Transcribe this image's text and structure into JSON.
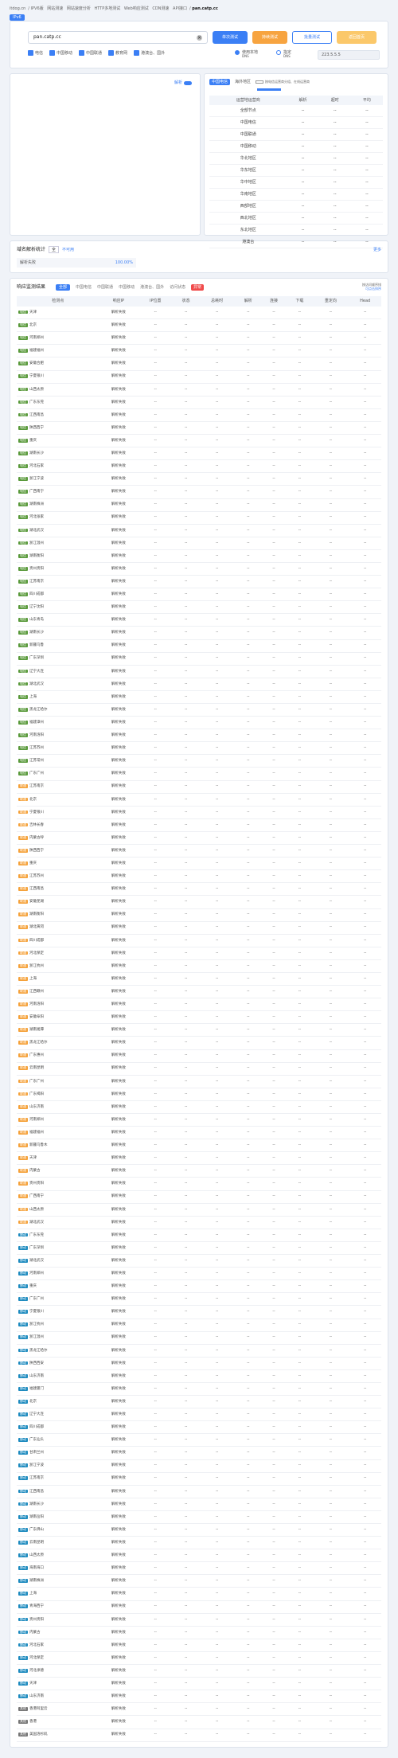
{
  "breadcrumb": [
    "itdog.cn",
    "IPV6版",
    "网站测速",
    "网站速度分析",
    "HTTP多地测试",
    "Web响应测试",
    "CDN测速",
    "API接口",
    "pan.catp.cc"
  ],
  "tag_label": "IPv6",
  "search": {
    "url_value": "pan.catp.cc",
    "btn_single": "单次测试",
    "btn_continuous": "持续测试",
    "btn_batch": "批量测试",
    "btn_ipv6": "返回首页"
  },
  "options": [
    "电信",
    "中国移动",
    "中国联通",
    "教育网",
    "港澳台、国外"
  ],
  "dns": {
    "opt1": "使用本地",
    "opt1_sub": "DNS",
    "opt2": "指定",
    "opt2_sub": "DNS",
    "value": "223.5.5.5"
  },
  "map_toggle": "解析",
  "isp": {
    "tabs": [
      "中国电信",
      "海外地区"
    ],
    "note": "按电信运营商分组、在线运营商",
    "headers": [
      "运营地运营商",
      "解析",
      "超时",
      "平均"
    ],
    "rows": [
      [
        "全部节点",
        "--",
        "--",
        "--"
      ],
      [
        "中国电信",
        "--",
        "--",
        "--"
      ],
      [
        "中国联通",
        "--",
        "--",
        "--"
      ],
      [
        "中国移动",
        "--",
        "--",
        "--"
      ],
      [
        "华北地区",
        "--",
        "--",
        "--"
      ],
      [
        "华东地区",
        "--",
        "--",
        "--"
      ],
      [
        "华中地区",
        "--",
        "--",
        "--"
      ],
      [
        "华南地区",
        "--",
        "--",
        "--"
      ],
      [
        "西部地区",
        "--",
        "--",
        "--"
      ],
      [
        "西北地区",
        "--",
        "--",
        "--"
      ],
      [
        "东北地区",
        "--",
        "--",
        "--"
      ],
      [
        "港澳台",
        "--",
        "--",
        "--"
      ]
    ]
  },
  "stat": {
    "title": "域名解析统计",
    "select": "全",
    "tag": "不可用",
    "more": "更多",
    "label": "解析失败",
    "value": "100.00%"
  },
  "result": {
    "title": "响应监测结果",
    "tabs": [
      "全部",
      "中国电信",
      "中国联通",
      "中国移动",
      "港澳台、国外",
      "访问状态",
      "异常"
    ],
    "tip1": "按访问顺序排",
    "tip2": "可点击排序",
    "headers": [
      "检测点",
      "响应IP",
      "IP位置",
      "状态",
      "总耗时",
      "解析",
      "连接",
      "下载",
      "重定向",
      "Head"
    ]
  },
  "rows": [
    [
      "电信",
      "天津"
    ],
    [
      "电信",
      "北京"
    ],
    [
      "电信",
      "河南郑州"
    ],
    [
      "电信",
      "福建福州"
    ],
    [
      "电信",
      "安徽合肥"
    ],
    [
      "电信",
      "宁夏银川"
    ],
    [
      "电信",
      "山西太原"
    ],
    [
      "电信",
      "广东东莞"
    ],
    [
      "电信",
      "江西南昌"
    ],
    [
      "电信",
      "陕西西宁"
    ],
    [
      "电信",
      "重庆"
    ],
    [
      "电信",
      "湖南长沙"
    ],
    [
      "电信",
      "河北石家"
    ],
    [
      "电信",
      "浙江宁波"
    ],
    [
      "电信",
      "广西南宁"
    ],
    [
      "电信",
      "湖南株洲"
    ],
    [
      "电信",
      "河北张家"
    ],
    [
      "电信",
      "湖北武汉"
    ],
    [
      "电信",
      "浙江温州"
    ],
    [
      "电信",
      "湖南衡阳"
    ],
    [
      "电信",
      "贵州贵阳"
    ],
    [
      "电信",
      "江苏南京"
    ],
    [
      "电信",
      "四川成都"
    ],
    [
      "电信",
      "辽宁沈阳"
    ],
    [
      "电信",
      "山东青岛"
    ],
    [
      "电信",
      "湖南长沙"
    ],
    [
      "电信",
      "新疆乌鲁"
    ],
    [
      "电信",
      "广东深圳"
    ],
    [
      "电信",
      "辽宁大连"
    ],
    [
      "电信",
      "湖北武汉"
    ],
    [
      "电信",
      "上海"
    ],
    [
      "电信",
      "黑龙江哈尔"
    ],
    [
      "电信",
      "福建漳州"
    ],
    [
      "电信",
      "河南洛阳"
    ],
    [
      "电信",
      "江苏苏州"
    ],
    [
      "电信",
      "江苏常州"
    ],
    [
      "电信",
      "广东广州"
    ],
    [
      "联通",
      "江苏南京"
    ],
    [
      "联通",
      "北京"
    ],
    [
      "联通",
      "宁夏银川"
    ],
    [
      "联通",
      "吉林长春"
    ],
    [
      "联通",
      "内蒙古呼"
    ],
    [
      "联通",
      "陕西西宁"
    ],
    [
      "联通",
      "重庆"
    ],
    [
      "联通",
      "江苏苏州"
    ],
    [
      "联通",
      "江西南昌"
    ],
    [
      "联通",
      "安徽芜湖"
    ],
    [
      "联通",
      "湖南衡阳"
    ],
    [
      "联通",
      "湖北黄冈"
    ],
    [
      "联通",
      "四川成都"
    ],
    [
      "联通",
      "河北保定"
    ],
    [
      "联通",
      "浙江杭州"
    ],
    [
      "联通",
      "上海"
    ],
    [
      "联通",
      "江西赣州"
    ],
    [
      "联通",
      "河南洛阳"
    ],
    [
      "联通",
      "安徽阜阳"
    ],
    [
      "联通",
      "湖南湘潭"
    ],
    [
      "联通",
      "黑龙江哈尔"
    ],
    [
      "联通",
      "广东惠州"
    ],
    [
      "联通",
      "云南昆明"
    ],
    [
      "联通",
      "广东广州"
    ],
    [
      "联通",
      "广东揭阳"
    ],
    [
      "联通",
      "山东济南"
    ],
    [
      "联通",
      "河南郑州"
    ],
    [
      "联通",
      "福建福州"
    ],
    [
      "联通",
      "新疆乌鲁木"
    ],
    [
      "联通",
      "天津"
    ],
    [
      "联通",
      "内蒙古"
    ],
    [
      "联通",
      "贵州贵阳"
    ],
    [
      "联通",
      "广西南宁"
    ],
    [
      "联通",
      "山西太原"
    ],
    [
      "联通",
      "湖北武汉"
    ],
    [
      "移动",
      "广东东莞"
    ],
    [
      "移动",
      "广东深圳"
    ],
    [
      "移动",
      "湖北武汉"
    ],
    [
      "移动",
      "河南郑州"
    ],
    [
      "移动",
      "重庆"
    ],
    [
      "移动",
      "广东广州"
    ],
    [
      "移动",
      "宁夏银川"
    ],
    [
      "移动",
      "浙江杭州"
    ],
    [
      "移动",
      "浙江温州"
    ],
    [
      "移动",
      "黑龙江哈尔"
    ],
    [
      "移动",
      "陕西西安"
    ],
    [
      "移动",
      "山东济南"
    ],
    [
      "移动",
      "福建厦门"
    ],
    [
      "移动",
      "北京"
    ],
    [
      "移动",
      "辽宁大连"
    ],
    [
      "移动",
      "四川成都"
    ],
    [
      "移动",
      "广东汕头"
    ],
    [
      "移动",
      "甘肃兰州"
    ],
    [
      "移动",
      "浙江宁波"
    ],
    [
      "移动",
      "江苏南京"
    ],
    [
      "移动",
      "江西南昌"
    ],
    [
      "移动",
      "湖南长沙"
    ],
    [
      "移动",
      "湖南岳阳"
    ],
    [
      "移动",
      "广东佛山"
    ],
    [
      "移动",
      "云南昆明"
    ],
    [
      "移动",
      "山西太原"
    ],
    [
      "移动",
      "海南海口"
    ],
    [
      "移动",
      "湖南株洲"
    ],
    [
      "移动",
      "上海"
    ],
    [
      "移动",
      "青海西宁"
    ],
    [
      "移动",
      "贵州贵阳"
    ],
    [
      "移动",
      "内蒙古"
    ],
    [
      "移动",
      "河北石家"
    ],
    [
      "移动",
      "河北保定"
    ],
    [
      "移动",
      "河北承德"
    ],
    [
      "移动",
      "天津"
    ],
    [
      "移动",
      "山东济南"
    ],
    [
      "其他",
      "香港阿里云"
    ],
    [
      "其他",
      "香港"
    ],
    [
      "其他",
      "美国洛杉矶"
    ]
  ],
  "row_ip": "解析失败",
  "row_dash": "--"
}
